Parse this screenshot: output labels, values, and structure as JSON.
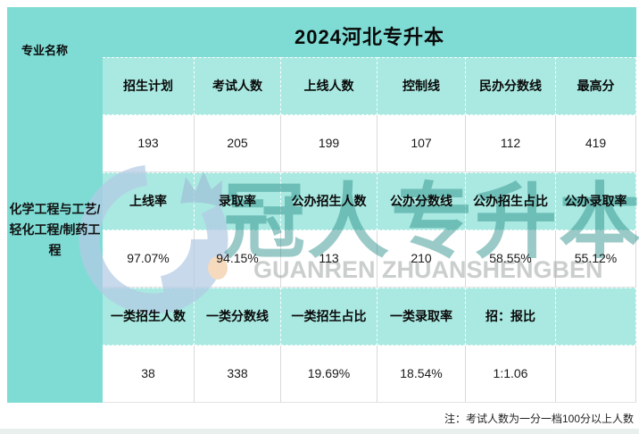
{
  "title": "2024河北专升本",
  "left_panel": {
    "column_label": "专业名称",
    "major_name": "化学工程与工艺/轻化工程/制药工程"
  },
  "table": {
    "rows": [
      {
        "type": "header",
        "cells": [
          "招生计划",
          "考试人数",
          "上线人数",
          "控制线",
          "民办分数线",
          "最高分"
        ]
      },
      {
        "type": "data",
        "cells": [
          "193",
          "205",
          "199",
          "107",
          "112",
          "419"
        ]
      },
      {
        "type": "header",
        "cells": [
          "上线率",
          "录取率",
          "公办招生人数",
          "公办分数线",
          "公办招生占比",
          "公办录取率"
        ]
      },
      {
        "type": "data",
        "cells": [
          "97.07%",
          "94.15%",
          "113",
          "210",
          "58.55%",
          "55.12%"
        ]
      },
      {
        "type": "header",
        "cells": [
          "一类招生人数",
          "一类分数线",
          "一类招生占比",
          "一类录取率",
          "招：报比",
          ""
        ]
      },
      {
        "type": "data",
        "cells": [
          "38",
          "338",
          "19.69%",
          "18.54%",
          "1:1.06",
          ""
        ]
      }
    ]
  },
  "watermark": {
    "logo": "guanren-swirl-logo",
    "text_cn": "冠人专升本",
    "text_en": "GUANREN ZHUANSHENGBEN"
  },
  "note": "注：考试人数为一分一档100分以上人数",
  "colors": {
    "panel_cyan": "#7EDCD4",
    "header_cell_cyan": "#A9E9E1",
    "data_cell_white": "#FFFFFF",
    "watermark_teal": "#2C9089",
    "watermark_gray": "#9EA6A3",
    "logo_blue": "#B3CBE5",
    "logo_orange": "#F2CDA6",
    "bottom_strip": "#E9EFED"
  }
}
